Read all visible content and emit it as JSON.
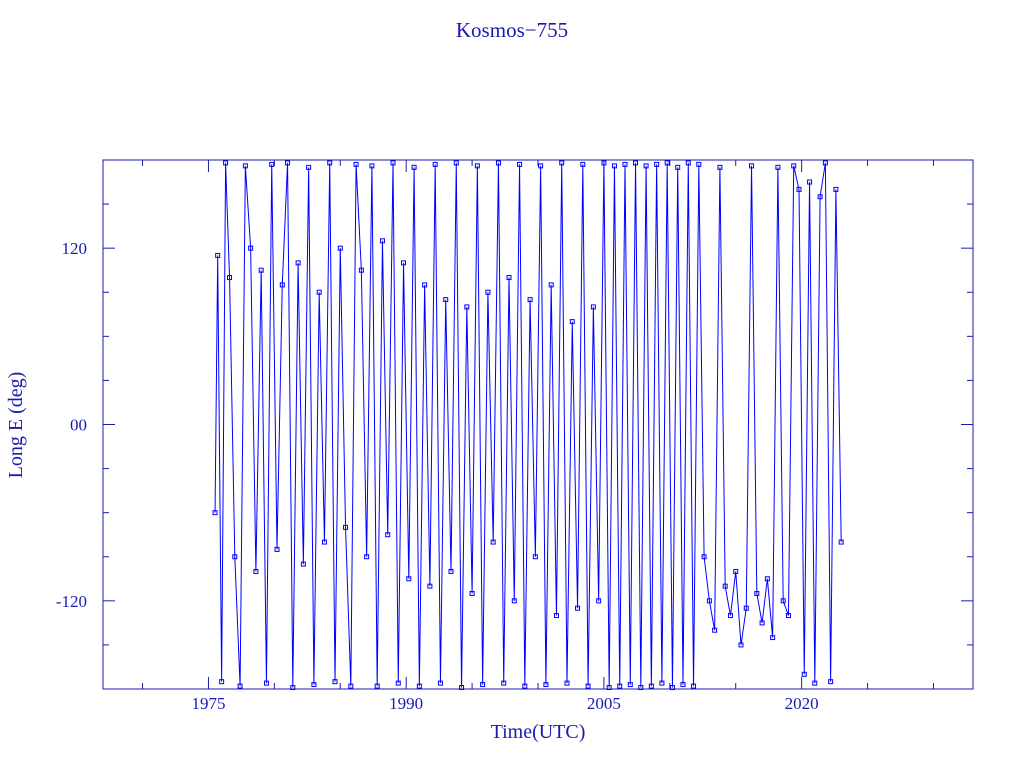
{
  "chart_data": {
    "type": "line",
    "title": "Kosmos−755",
    "x_label": "Time(UTC)",
    "y_label": "Long E (deg)",
    "xlim": [
      1967,
      2033
    ],
    "xticks": [
      1975,
      1990,
      2005,
      2020
    ],
    "xticks_minor": [
      1970,
      1980,
      1985,
      1995,
      2000,
      2010,
      2015,
      2025,
      2030
    ],
    "ylim": [
      -180,
      180
    ],
    "yticks": [
      -120,
      {
        "value": 0,
        "label": "00"
      },
      120
    ],
    "yticks_minor": [
      -150,
      -90,
      -60,
      -30,
      30,
      60,
      90,
      150
    ],
    "series": [
      {
        "color": "#0000ff",
        "marker": "square",
        "x": [
          1975.5,
          1975.7,
          1976.0,
          1976.3,
          1976.6,
          1977.0,
          1977.4,
          1977.8,
          1978.2,
          1978.6,
          1979.0,
          1979.4,
          1979.8,
          1980.2,
          1980.6,
          1981.0,
          1981.4,
          1981.8,
          1982.2,
          1982.6,
          1983.0,
          1983.4,
          1983.8,
          1984.2,
          1984.6,
          1985.0,
          1985.4,
          1985.8,
          1986.2,
          1986.6,
          1987.0,
          1987.4,
          1987.8,
          1988.2,
          1988.6,
          1989.0,
          1989.4,
          1989.8,
          1990.2,
          1990.6,
          1991.0,
          1991.4,
          1991.8,
          1992.2,
          1992.6,
          1993.0,
          1993.4,
          1993.8,
          1994.2,
          1994.6,
          1995.0,
          1995.4,
          1995.8,
          1996.2,
          1996.6,
          1997.0,
          1997.4,
          1997.8,
          1998.2,
          1998.6,
          1999.0,
          1999.4,
          1999.8,
          2000.2,
          2000.6,
          2001.0,
          2001.4,
          2001.8,
          2002.2,
          2002.6,
          2003.0,
          2003.4,
          2003.8,
          2004.2,
          2004.6,
          2005.0,
          2005.4,
          2005.8,
          2006.2,
          2006.6,
          2007.0,
          2007.4,
          2007.8,
          2008.2,
          2008.6,
          2009.0,
          2009.4,
          2009.8,
          2010.2,
          2010.6,
          2011.0,
          2011.4,
          2011.8,
          2012.2,
          2012.6,
          2013.0,
          2013.4,
          2013.8,
          2014.2,
          2014.6,
          2015.0,
          2015.4,
          2015.8,
          2016.2,
          2016.6,
          2017.0,
          2017.4,
          2017.8,
          2018.2,
          2018.6,
          2019.0,
          2019.4,
          2019.8,
          2020.2,
          2020.6,
          2021.0,
          2021.4,
          2021.8,
          2022.2,
          2022.6,
          2023.0
        ],
        "values": [
          -60,
          115,
          -175,
          178,
          100,
          -90,
          -178,
          176,
          120,
          -100,
          105,
          -176,
          177,
          -85,
          95,
          178,
          -179,
          110,
          -95,
          175,
          -177,
          90,
          -80,
          178,
          -175,
          120,
          -70,
          -178,
          177,
          105,
          -90,
          176,
          -178,
          125,
          -75,
          178,
          -176,
          110,
          -105,
          175,
          -178,
          95,
          -110,
          177,
          -176,
          85,
          -100,
          178,
          -179,
          80,
          -115,
          176,
          -177,
          90,
          -80,
          178,
          -176,
          100,
          -120,
          177,
          -178,
          85,
          -90,
          176,
          -177,
          95,
          -130,
          178,
          -176,
          70,
          -125,
          177,
          -178,
          80,
          -120,
          178,
          -179,
          176,
          -178,
          177,
          -177,
          178,
          -179,
          176,
          -178,
          177,
          -176,
          178,
          -179,
          175,
          -177,
          178,
          -178,
          177,
          -90,
          -120,
          -140,
          175,
          -110,
          -130,
          -100,
          -150,
          -125,
          176,
          -115,
          -135,
          -105,
          -145,
          175,
          -120,
          -130,
          176,
          160,
          -170,
          165,
          -176,
          155,
          178,
          -175,
          160,
          -80
        ]
      }
    ]
  }
}
